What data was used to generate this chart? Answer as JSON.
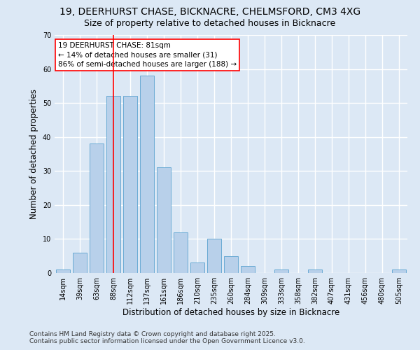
{
  "title_line1": "19, DEERHURST CHASE, BICKNACRE, CHELMSFORD, CM3 4XG",
  "title_line2": "Size of property relative to detached houses in Bicknacre",
  "xlabel": "Distribution of detached houses by size in Bicknacre",
  "ylabel": "Number of detached properties",
  "categories": [
    "14sqm",
    "39sqm",
    "63sqm",
    "88sqm",
    "112sqm",
    "137sqm",
    "161sqm",
    "186sqm",
    "210sqm",
    "235sqm",
    "260sqm",
    "284sqm",
    "309sqm",
    "333sqm",
    "358sqm",
    "382sqm",
    "407sqm",
    "431sqm",
    "456sqm",
    "480sqm",
    "505sqm"
  ],
  "values": [
    1,
    6,
    38,
    52,
    52,
    58,
    31,
    12,
    3,
    10,
    5,
    2,
    0,
    1,
    0,
    1,
    0,
    0,
    0,
    0,
    1
  ],
  "bar_color": "#b8d0ea",
  "bar_edgecolor": "#6aaad4",
  "background_color": "#dce8f5",
  "grid_color": "#ffffff",
  "vline_x": 3.0,
  "vline_color": "red",
  "annotation_text": "19 DEERHURST CHASE: 81sqm\n← 14% of detached houses are smaller (31)\n86% of semi-detached houses are larger (188) →",
  "annotation_box_color": "white",
  "annotation_box_edgecolor": "red",
  "ylim": [
    0,
    70
  ],
  "yticks": [
    0,
    10,
    20,
    30,
    40,
    50,
    60,
    70
  ],
  "footer_line1": "Contains HM Land Registry data © Crown copyright and database right 2025.",
  "footer_line2": "Contains public sector information licensed under the Open Government Licence v3.0.",
  "title_fontsize": 10,
  "subtitle_fontsize": 9,
  "axis_label_fontsize": 8.5,
  "tick_fontsize": 7,
  "footer_fontsize": 6.5,
  "annotation_fontsize": 7.5
}
